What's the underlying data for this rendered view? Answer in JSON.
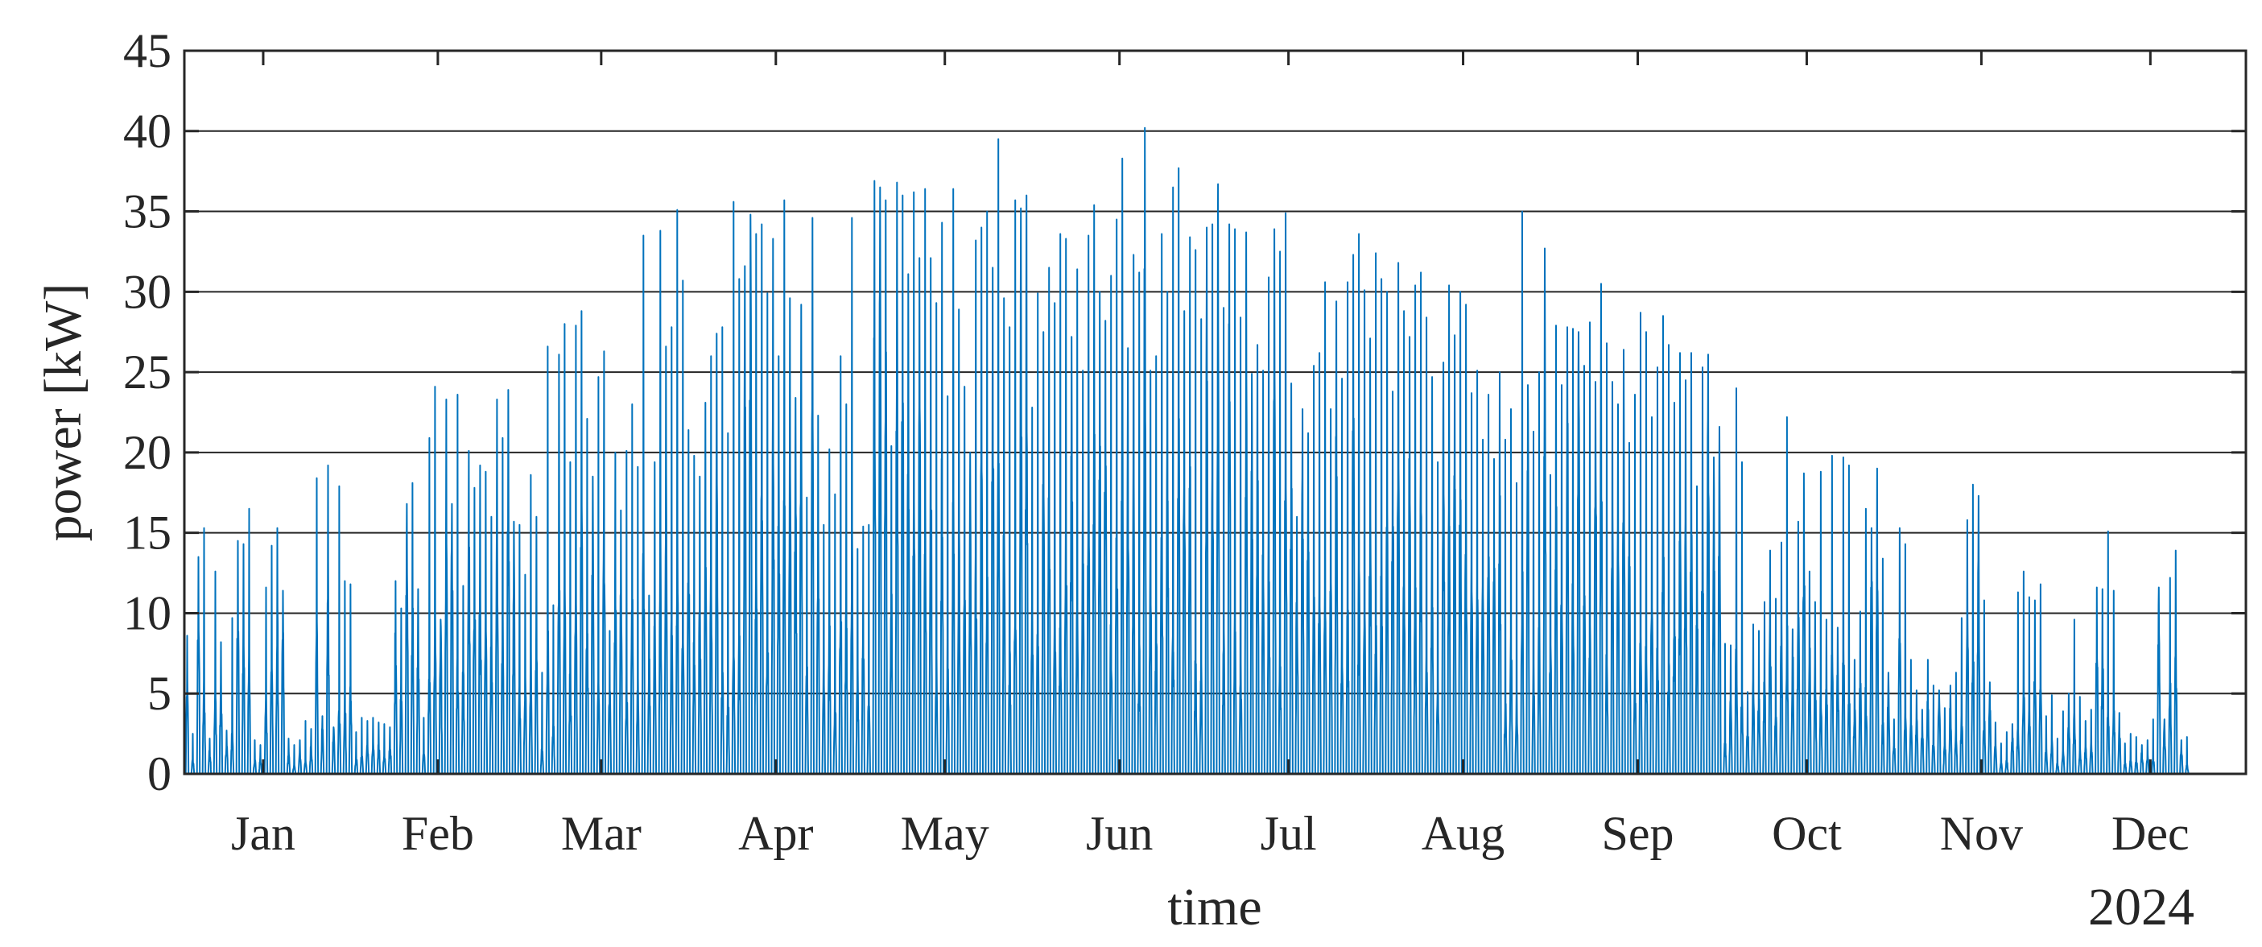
{
  "chart_data": {
    "type": "line",
    "title": "",
    "xlabel": "time",
    "ylabel": "power [kW]",
    "x_secondary_label": "2024",
    "xlim": [
      "2024-01-01",
      "2024-12-31"
    ],
    "ylim": [
      0,
      45
    ],
    "yticks": [
      0,
      5,
      10,
      15,
      20,
      25,
      30,
      35,
      40,
      45
    ],
    "xtick_labels": [
      "Jan",
      "Feb",
      "Mar",
      "Apr",
      "May",
      "Jun",
      "Jul",
      "Aug",
      "Sep",
      "Oct",
      "Nov",
      "Dec"
    ],
    "grid": "horizontal",
    "legend": "none",
    "color": "#0072BD",
    "series": [
      {
        "sampling": "daily peak (kW), approximate; hourly solar profile",
        "x_start": "2024-01-01",
        "x_end": "2024-12-31",
        "daily_peak": [
          8.6,
          2.5,
          13.5,
          15.3,
          2.2,
          12.6,
          8.2,
          2.7,
          9.7,
          14.5,
          14.3,
          16.5,
          2.1,
          1.8,
          11.6,
          14.2,
          15.3,
          11.4,
          2.2,
          1.8,
          2.1,
          3.3,
          2.8,
          18.4,
          3.6,
          19.2,
          2.9,
          17.9,
          12.0,
          11.8,
          2.6,
          3.5,
          3.3,
          3.5,
          3.2,
          3.1,
          2.9,
          12.0,
          10.3,
          16.8,
          18.1,
          11.5,
          3.5,
          20.9,
          24.1,
          9.6,
          23.3,
          16.8,
          23.6,
          11.7,
          20.1,
          17.8,
          19.2,
          18.8,
          16.0,
          23.3,
          20.9,
          23.9,
          15.7,
          15.5,
          12.4,
          18.6,
          16.0,
          6.3,
          26.6,
          10.5,
          26.1,
          28.0,
          19.4,
          27.9,
          28.8,
          22.1,
          18.5,
          24.7,
          26.3,
          8.9,
          20.0,
          16.4,
          20.1,
          23.0,
          19.1,
          33.5,
          11.1,
          19.4,
          33.8,
          26.6,
          27.8,
          35.1,
          30.7,
          21.4,
          19.8,
          18.5,
          23.1,
          26.0,
          27.4,
          27.8,
          21.2,
          35.6,
          30.8,
          31.6,
          34.8,
          33.6,
          34.2,
          29.9,
          33.3,
          26.0,
          35.7,
          29.6,
          23.4,
          29.2,
          17.2,
          34.6,
          22.3,
          15.5,
          20.2,
          17.4,
          26.0,
          23.0,
          34.6,
          14.0,
          15.4,
          15.5,
          36.9,
          36.5,
          35.7,
          20.4,
          36.8,
          36.0,
          31.1,
          36.2,
          32.1,
          36.4,
          32.1,
          29.3,
          34.3,
          23.5,
          36.4,
          28.9,
          24.1,
          20.0,
          33.2,
          34.0,
          35.0,
          31.5,
          39.5,
          29.6,
          27.8,
          35.7,
          35.2,
          36.0,
          22.8,
          29.9,
          27.5,
          31.5,
          29.3,
          33.6,
          33.3,
          27.2,
          31.4,
          25.1,
          33.5,
          35.4,
          30.0,
          28.2,
          31.0,
          34.5,
          38.3,
          26.5,
          32.3,
          31.2,
          40.2,
          25.1,
          26.0,
          33.6,
          30.0,
          36.5,
          37.7,
          28.8,
          33.4,
          32.6,
          28.3,
          34.0,
          34.2,
          36.7,
          29.0,
          34.2,
          33.9,
          28.4,
          33.7,
          24.9,
          26.7,
          25.1,
          30.9,
          33.9,
          32.5,
          34.9,
          24.3,
          16.0,
          22.7,
          21.2,
          25.4,
          26.2,
          30.6,
          22.7,
          29.4,
          24.6,
          30.6,
          32.3,
          33.6,
          30.1,
          27.1,
          32.4,
          30.8,
          30.0,
          23.8,
          31.8,
          28.8,
          27.2,
          30.4,
          31.2,
          28.4,
          24.7,
          19.4,
          25.6,
          30.4,
          27.3,
          30.0,
          29.2,
          23.7,
          25.1,
          20.8,
          23.6,
          19.6,
          25.0,
          20.8,
          22.7,
          18.1,
          35.0,
          24.2,
          21.3,
          25.0,
          32.7,
          18.6,
          27.9,
          24.2,
          27.8,
          27.7,
          27.5,
          25.4,
          28.1,
          24.4,
          30.5,
          26.8,
          24.4,
          23.0,
          26.4,
          20.6,
          23.6,
          28.7,
          27.5,
          22.2,
          25.3,
          28.5,
          26.7,
          23.1,
          26.2,
          24.5,
          26.2,
          17.9,
          25.3,
          26.1,
          19.7,
          21.6,
          8.1,
          8.0,
          24.0,
          19.4,
          5.1,
          9.3,
          8.9,
          10.7,
          13.9,
          10.9,
          14.4,
          22.2,
          9.0,
          15.7,
          18.7,
          12.6,
          10.7,
          18.8,
          9.6,
          19.8,
          9.1,
          19.7,
          19.2,
          7.1,
          10.1,
          16.5,
          15.3,
          19.0,
          13.4,
          6.3,
          3.4,
          15.3,
          14.3,
          7.1,
          5.2,
          4.0,
          7.1,
          5.5,
          5.2,
          4.1,
          5.5,
          6.3,
          9.7,
          15.8,
          18.0,
          17.3,
          10.8,
          5.7,
          3.2,
          1.9,
          2.6,
          3.1,
          11.3,
          12.6,
          11.0,
          10.8,
          11.8,
          3.6,
          4.9,
          2.2,
          3.9,
          5.0,
          9.6,
          4.8,
          3.3,
          4.0,
          11.6,
          11.5,
          15.1,
          11.4,
          3.8,
          1.9,
          2.5,
          2.3,
          1.8,
          2.1,
          3.4,
          11.6,
          3.4,
          12.2,
          13.9,
          2.1,
          2.3
        ]
      }
    ]
  }
}
